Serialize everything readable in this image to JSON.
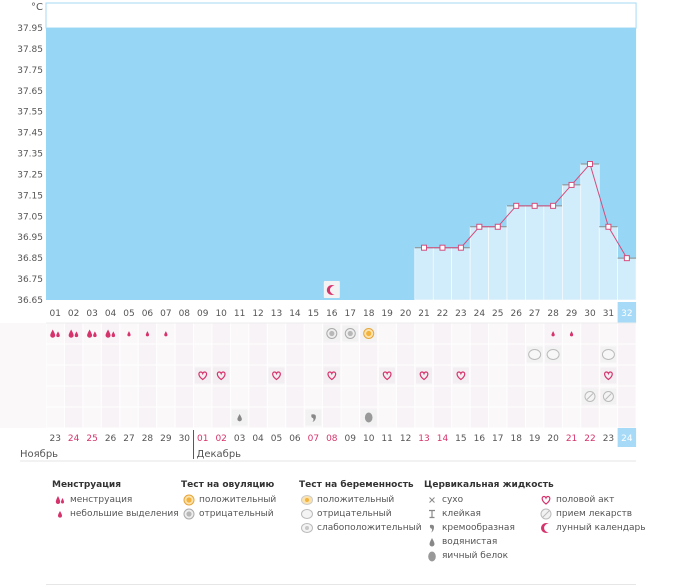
{
  "chart_data": {
    "type": "bar",
    "ylabel": "°C",
    "ylim": [
      36.65,
      37.95
    ],
    "yticks": [
      "37.95",
      "37.85",
      "37.75",
      "37.65",
      "37.55",
      "37.45",
      "37.35",
      "37.25",
      "37.15",
      "37.05",
      "36.95",
      "36.85",
      "36.75",
      "36.65"
    ],
    "cycle_days": [
      "01",
      "02",
      "03",
      "04",
      "05",
      "06",
      "07",
      "08",
      "09",
      "10",
      "11",
      "12",
      "13",
      "14",
      "15",
      "16",
      "17",
      "18",
      "19",
      "20",
      "21",
      "22",
      "23",
      "24",
      "25",
      "26",
      "27",
      "28",
      "29",
      "30",
      "31",
      "32"
    ],
    "calendar_dates": [
      "23",
      "24",
      "25",
      "26",
      "27",
      "28",
      "29",
      "30",
      "01",
      "02",
      "03",
      "04",
      "05",
      "06",
      "07",
      "08",
      "09",
      "10",
      "11",
      "12",
      "13",
      "14",
      "15",
      "16",
      "17",
      "18",
      "19",
      "20",
      "21",
      "22",
      "23",
      "24"
    ],
    "highlight_dates": [
      1,
      2,
      8,
      9,
      14,
      15,
      20,
      21,
      28,
      29
    ],
    "months": [
      {
        "label": "Ноябрь",
        "start": 0
      },
      {
        "label": "Декабрь",
        "start": 8
      }
    ],
    "temperature": [
      null,
      null,
      null,
      null,
      null,
      null,
      null,
      null,
      null,
      null,
      null,
      null,
      null,
      null,
      null,
      null,
      null,
      null,
      null,
      null,
      36.9,
      36.9,
      36.9,
      37.0,
      37.0,
      37.1,
      37.1,
      37.1,
      37.2,
      37.3,
      37.0,
      36.85
    ],
    "current_day_index": 31,
    "rows": {
      "menstruation": [
        {
          "day": 0,
          "type": "menstruation"
        },
        {
          "day": 1,
          "type": "menstruation"
        },
        {
          "day": 2,
          "type": "menstruation"
        },
        {
          "day": 3,
          "type": "menstruation"
        },
        {
          "day": 4,
          "type": "spotting"
        },
        {
          "day": 5,
          "type": "spotting"
        },
        {
          "day": 6,
          "type": "spotting"
        },
        {
          "day": 27,
          "type": "spotting"
        },
        {
          "day": 28,
          "type": "spotting"
        }
      ],
      "ovulation_test": [
        {
          "day": 15,
          "type": "negative"
        },
        {
          "day": 16,
          "type": "negative"
        },
        {
          "day": 17,
          "type": "positive"
        }
      ],
      "pregnancy_test": [
        {
          "day": 26,
          "type": "negative"
        },
        {
          "day": 27,
          "type": "negative"
        },
        {
          "day": 30,
          "type": "negative"
        }
      ],
      "intercourse": [
        8,
        9,
        12,
        15,
        18,
        20,
        22,
        30
      ],
      "medication": [
        29,
        30
      ],
      "cervical_fluid": [
        {
          "day": 10,
          "type": "watery"
        },
        {
          "day": 14,
          "type": "creamy"
        },
        {
          "day": 17,
          "type": "egg_white"
        }
      ],
      "lunar_calendar": [
        15
      ]
    }
  },
  "legend": {
    "menstruation": {
      "title": "Менструация",
      "items": [
        {
          "icon": "menstruation-icon",
          "label": "менструация"
        },
        {
          "icon": "spotting-icon",
          "label": "небольшие выделения"
        }
      ]
    },
    "ovulation": {
      "title": "Тест на овуляцию",
      "items": [
        {
          "icon": "positive-test-icon",
          "label": "положительный"
        },
        {
          "icon": "negative-test-icon",
          "label": "отрицательный"
        }
      ]
    },
    "pregnancy": {
      "title": "Тест на беременность",
      "items": [
        {
          "icon": "pregnancy-positive-icon",
          "label": "положительный"
        },
        {
          "icon": "pregnancy-negative-icon",
          "label": "отрицательный"
        },
        {
          "icon": "pregnancy-weak-icon",
          "label": "слабоположительный"
        }
      ]
    },
    "cervical": {
      "title": "Цервикальная жидкость",
      "items": [
        {
          "icon": "dry-icon",
          "label": "сухо"
        },
        {
          "icon": "sticky-icon",
          "label": "клейкая"
        },
        {
          "icon": "creamy-icon",
          "label": "кремообразная"
        },
        {
          "icon": "watery-icon",
          "label": "водянистая"
        },
        {
          "icon": "egg-white-icon",
          "label": "яичный белок"
        }
      ]
    },
    "other": {
      "items": [
        {
          "icon": "heart-icon",
          "label": "половой акт"
        },
        {
          "icon": "pill-icon",
          "label": "прием лекарств"
        },
        {
          "icon": "moon-icon",
          "label": "лунный календарь"
        }
      ]
    }
  },
  "colors": {
    "blue": "#98d6f5",
    "light_bar": "#d1edfb",
    "line": "#d44d7c",
    "pink": "#d6336c",
    "accent_cell": "#a6daf6"
  }
}
